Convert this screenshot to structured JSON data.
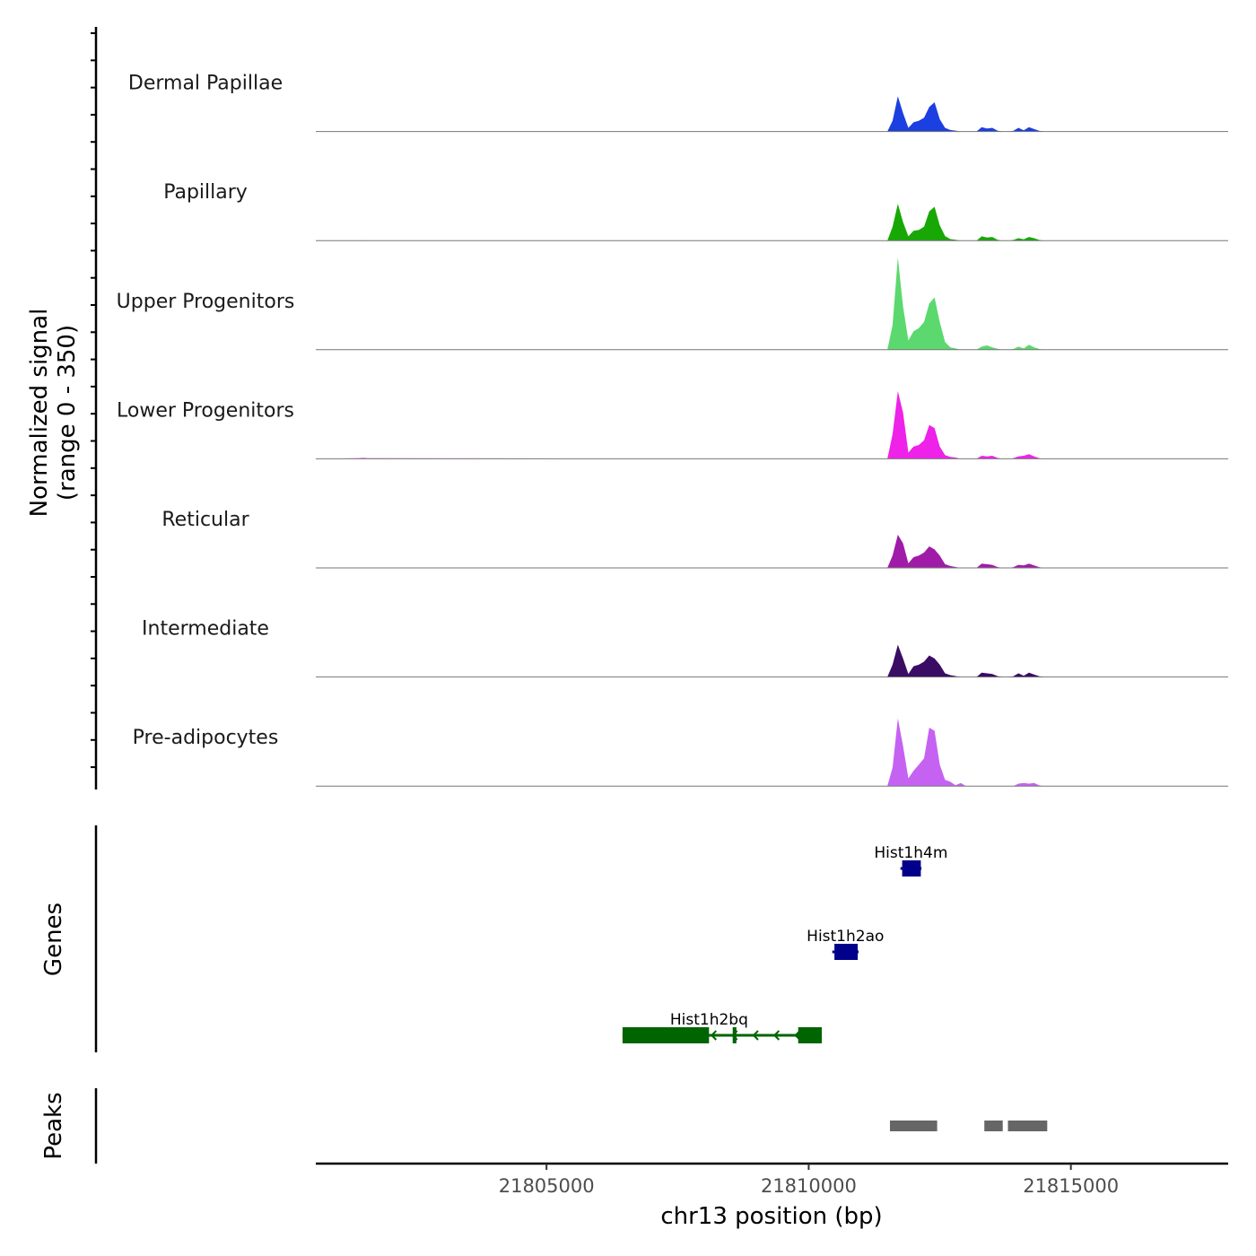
{
  "chart_data": {
    "type": "area",
    "title": "",
    "xlabel": "chr13 position (bp)",
    "ylabel": [
      "Normalized signal",
      "(range 0 - 350)"
    ],
    "ylim": [
      0,
      350
    ],
    "xlim": [
      21800600,
      21818000
    ],
    "x_ticks": [
      21805000,
      21810000,
      21815000
    ],
    "x_tick_labels": [
      "21805000",
      "21810000",
      "21815000"
    ],
    "x": [
      21800600,
      21801400,
      21801500,
      21801600,
      21811500,
      21811600,
      21811700,
      21811800,
      21811900,
      21812000,
      21812100,
      21812200,
      21812300,
      21812400,
      21812500,
      21812600,
      21812700,
      21812800,
      21812900,
      21813000,
      21813100,
      21813200,
      21813300,
      21813400,
      21813500,
      21813600,
      21813700,
      21813800,
      21813900,
      21814000,
      21814100,
      21814200,
      21814300,
      21814400,
      21814500,
      21814600,
      21814700,
      21818000
    ],
    "series": [
      {
        "name": "Dermal Papillae",
        "color": "#1B3FE0",
        "values": [
          0,
          0,
          0,
          0,
          0,
          35,
          115,
          60,
          12,
          30,
          35,
          45,
          80,
          95,
          40,
          12,
          5,
          3,
          0,
          0,
          0,
          0,
          14,
          10,
          12,
          3,
          0,
          0,
          2,
          12,
          4,
          14,
          8,
          2,
          0,
          0,
          0,
          0
        ]
      },
      {
        "name": "Papillary",
        "color": "#17A805",
        "values": [
          0,
          0,
          1,
          0,
          0,
          45,
          120,
          60,
          14,
          32,
          35,
          45,
          95,
          110,
          50,
          15,
          5,
          3,
          0,
          0,
          0,
          0,
          14,
          10,
          12,
          3,
          0,
          0,
          2,
          8,
          4,
          12,
          8,
          2,
          0,
          0,
          0,
          0
        ]
      },
      {
        "name": "Upper Progenitors",
        "color": "#5BD96E",
        "values": [
          0,
          0,
          0,
          0,
          0,
          80,
          300,
          140,
          30,
          60,
          70,
          90,
          150,
          170,
          90,
          25,
          8,
          4,
          0,
          0,
          0,
          0,
          10,
          14,
          8,
          3,
          0,
          0,
          2,
          10,
          4,
          16,
          8,
          2,
          0,
          0,
          0,
          0
        ]
      },
      {
        "name": "Lower Progenitors",
        "color": "#EE22E8",
        "values": [
          0,
          2,
          3,
          2,
          0,
          80,
          220,
          150,
          20,
          40,
          45,
          60,
          110,
          100,
          40,
          12,
          6,
          4,
          0,
          0,
          0,
          0,
          10,
          8,
          10,
          3,
          0,
          0,
          2,
          8,
          10,
          15,
          8,
          2,
          0,
          0,
          0,
          0
        ]
      },
      {
        "name": "Reticular",
        "color": "#A01CA8",
        "values": [
          0,
          0,
          1,
          0,
          0,
          40,
          108,
          80,
          15,
          35,
          40,
          50,
          70,
          60,
          40,
          12,
          6,
          3,
          0,
          0,
          0,
          0,
          14,
          12,
          10,
          3,
          0,
          0,
          2,
          10,
          8,
          14,
          8,
          2,
          0,
          0,
          0,
          0
        ]
      },
      {
        "name": "Intermediate",
        "color": "#3A0C63",
        "values": [
          0,
          0,
          0,
          0,
          0,
          40,
          105,
          60,
          10,
          35,
          40,
          50,
          70,
          60,
          40,
          12,
          6,
          3,
          0,
          0,
          0,
          0,
          14,
          12,
          10,
          3,
          0,
          0,
          2,
          12,
          4,
          14,
          8,
          2,
          0,
          0,
          0,
          0
        ]
      },
      {
        "name": "Pre-adipocytes",
        "color": "#C562F2",
        "values": [
          0,
          0,
          0,
          0,
          0,
          60,
          220,
          130,
          25,
          50,
          70,
          90,
          190,
          180,
          70,
          20,
          14,
          3,
          10,
          0,
          0,
          0,
          0,
          0,
          0,
          0,
          0,
          0,
          0,
          8,
          10,
          8,
          10,
          2,
          0,
          0,
          0,
          0
        ]
      }
    ],
    "genes": [
      {
        "name": "Hist1h4m",
        "color": "#00008B",
        "start": 21811750,
        "end": 21812150,
        "strand": "-",
        "row": 1
      },
      {
        "name": "Hist1h2ao",
        "color": "#00008B",
        "start": 21810450,
        "end": 21810950,
        "strand": "-",
        "row": 2
      },
      {
        "name": "Hist1h2bq",
        "color": "#006400",
        "start": 21806450,
        "end": 21810250,
        "strand": "-",
        "row": 3,
        "exons": [
          [
            21806450,
            21808100
          ],
          [
            21808550,
            21808620
          ],
          [
            21809800,
            21810250
          ]
        ]
      }
    ],
    "gene_track_label": "Genes",
    "peaks": [
      {
        "start": 21811550,
        "end": 21812450
      },
      {
        "start": 21813350,
        "end": 21813700
      },
      {
        "start": 21813800,
        "end": 21814550
      }
    ],
    "peak_color": "#666666",
    "peak_track_label": "Peaks"
  }
}
